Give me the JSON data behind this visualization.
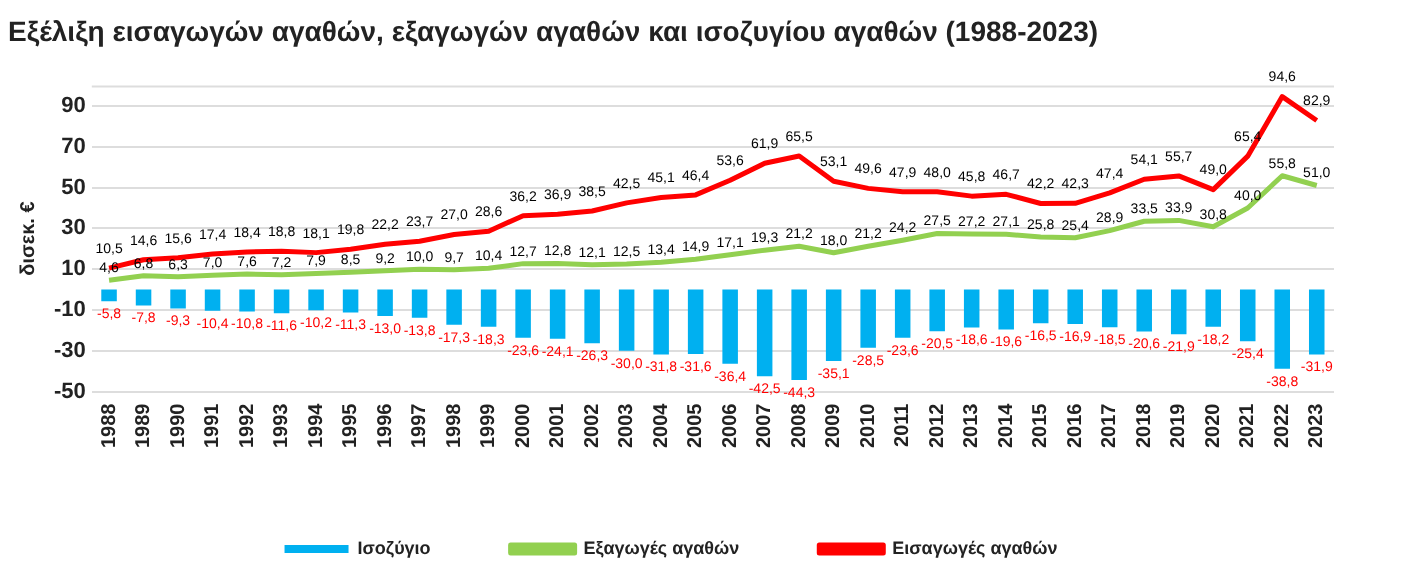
{
  "chart_data": {
    "type": "bar",
    "title": "Εξέλιξη εισαγωγών αγαθών, εξαγωγών αγαθών και ισοζυγίου αγαθών (1988-2023)",
    "ylabel": "δισεκ. €",
    "categories": [
      "1988",
      "1989",
      "1990",
      "1991",
      "1992",
      "1993",
      "1994",
      "1995",
      "1996",
      "1997",
      "1998",
      "1999",
      "2000",
      "2001",
      "2002",
      "2003",
      "2004",
      "2005",
      "2006",
      "2007",
      "2008",
      "2009",
      "2010",
      "2011",
      "2012",
      "2013",
      "2014",
      "2015",
      "2016",
      "2017",
      "2018",
      "2019",
      "2020",
      "2021",
      "2022",
      "2023"
    ],
    "series": [
      {
        "name": "Ισοζύγιο",
        "color": "#00b0f0",
        "values": [
          -5.8,
          -7.8,
          -9.3,
          -10.4,
          -10.8,
          -11.6,
          -10.2,
          -11.3,
          -13.0,
          -13.8,
          -17.3,
          -18.3,
          -23.6,
          -24.1,
          -26.3,
          -30.0,
          -31.8,
          -31.6,
          -36.4,
          -42.5,
          -44.3,
          -35.1,
          -28.5,
          -23.6,
          -20.5,
          -18.6,
          -19.6,
          -16.5,
          -16.9,
          -18.5,
          -20.6,
          -21.9,
          -18.2,
          -25.4,
          -38.8,
          -31.9
        ],
        "value_labels": [
          "-5,8",
          "-7,8",
          "-9,3",
          "-10,4",
          "-10,8",
          "-11,6",
          "-10,2",
          "-11,3",
          "-13,0",
          "-13,8",
          "-17,3",
          "-18,3",
          "-23,6",
          "-24,1",
          "-26,3",
          "-30,0",
          "-31,8",
          "-31,6",
          "-36,4",
          "-42,5",
          "-44,3",
          "-35,1",
          "-28,5",
          "-23,6",
          "-20,5",
          "-18,6",
          "-19,6",
          "-16,5",
          "-16,9",
          "-18,5",
          "-20,6",
          "-21,9",
          "-18,2",
          "-25,4",
          "-38,8",
          "-31,9"
        ]
      },
      {
        "name": "Εξαγωγές αγαθών",
        "type": "line",
        "color": "#92d050",
        "values": [
          4.6,
          6.8,
          6.3,
          7.0,
          7.6,
          7.2,
          7.9,
          8.5,
          9.2,
          10.0,
          9.7,
          10.4,
          12.7,
          12.8,
          12.1,
          12.5,
          13.4,
          14.9,
          17.1,
          19.3,
          21.2,
          18.0,
          21.2,
          24.2,
          27.5,
          27.2,
          27.1,
          25.8,
          25.4,
          28.9,
          33.5,
          33.9,
          30.8,
          40.0,
          55.8,
          51.0
        ],
        "value_labels": [
          "4,6",
          "6,8",
          "6,3",
          "7,0",
          "7,6",
          "7,2",
          "7,9",
          "8,5",
          "9,2",
          "10,0",
          "9,7",
          "10,4",
          "12,7",
          "12,8",
          "12,1",
          "12,5",
          "13,4",
          "14,9",
          "17,1",
          "19,3",
          "21,2",
          "18,0",
          "21,2",
          "24,2",
          "27,5",
          "27,2",
          "27,1",
          "25,8",
          "25,4",
          "28,9",
          "33,5",
          "33,9",
          "30,8",
          "40,0",
          "55,8",
          "51,0"
        ]
      },
      {
        "name": "Εισαγωγές αγαθών",
        "type": "line",
        "color": "#ff0000",
        "values": [
          10.5,
          14.6,
          15.6,
          17.4,
          18.4,
          18.8,
          18.1,
          19.8,
          22.2,
          23.7,
          27.0,
          28.6,
          36.2,
          36.9,
          38.5,
          42.5,
          45.1,
          46.4,
          53.6,
          61.9,
          65.5,
          53.1,
          49.6,
          47.9,
          48.0,
          45.8,
          46.7,
          42.2,
          42.3,
          47.4,
          54.1,
          55.7,
          49.0,
          65.4,
          94.6,
          82.9
        ],
        "value_labels": [
          "10,5",
          "14,6",
          "15,6",
          "17,4",
          "18,4",
          "18,8",
          "18,1",
          "19,8",
          "22,2",
          "23,7",
          "27,0",
          "28,6",
          "36,2",
          "36,9",
          "38,5",
          "42,5",
          "45,1",
          "46,4",
          "53,6",
          "61,9",
          "65,5",
          "53,1",
          "49,6",
          "47,9",
          "48,0",
          "45,8",
          "46,7",
          "42,2",
          "42,3",
          "47,4",
          "54,1",
          "55,7",
          "49,0",
          "65,4",
          "94,6",
          "82,9"
        ]
      }
    ],
    "ylim": [
      -50,
      100
    ],
    "yticks": [
      -50,
      -30,
      -10,
      10,
      30,
      50,
      70,
      90
    ],
    "grid": "y",
    "legend": "bottom",
    "marker": "none",
    "line_style": "solid"
  }
}
